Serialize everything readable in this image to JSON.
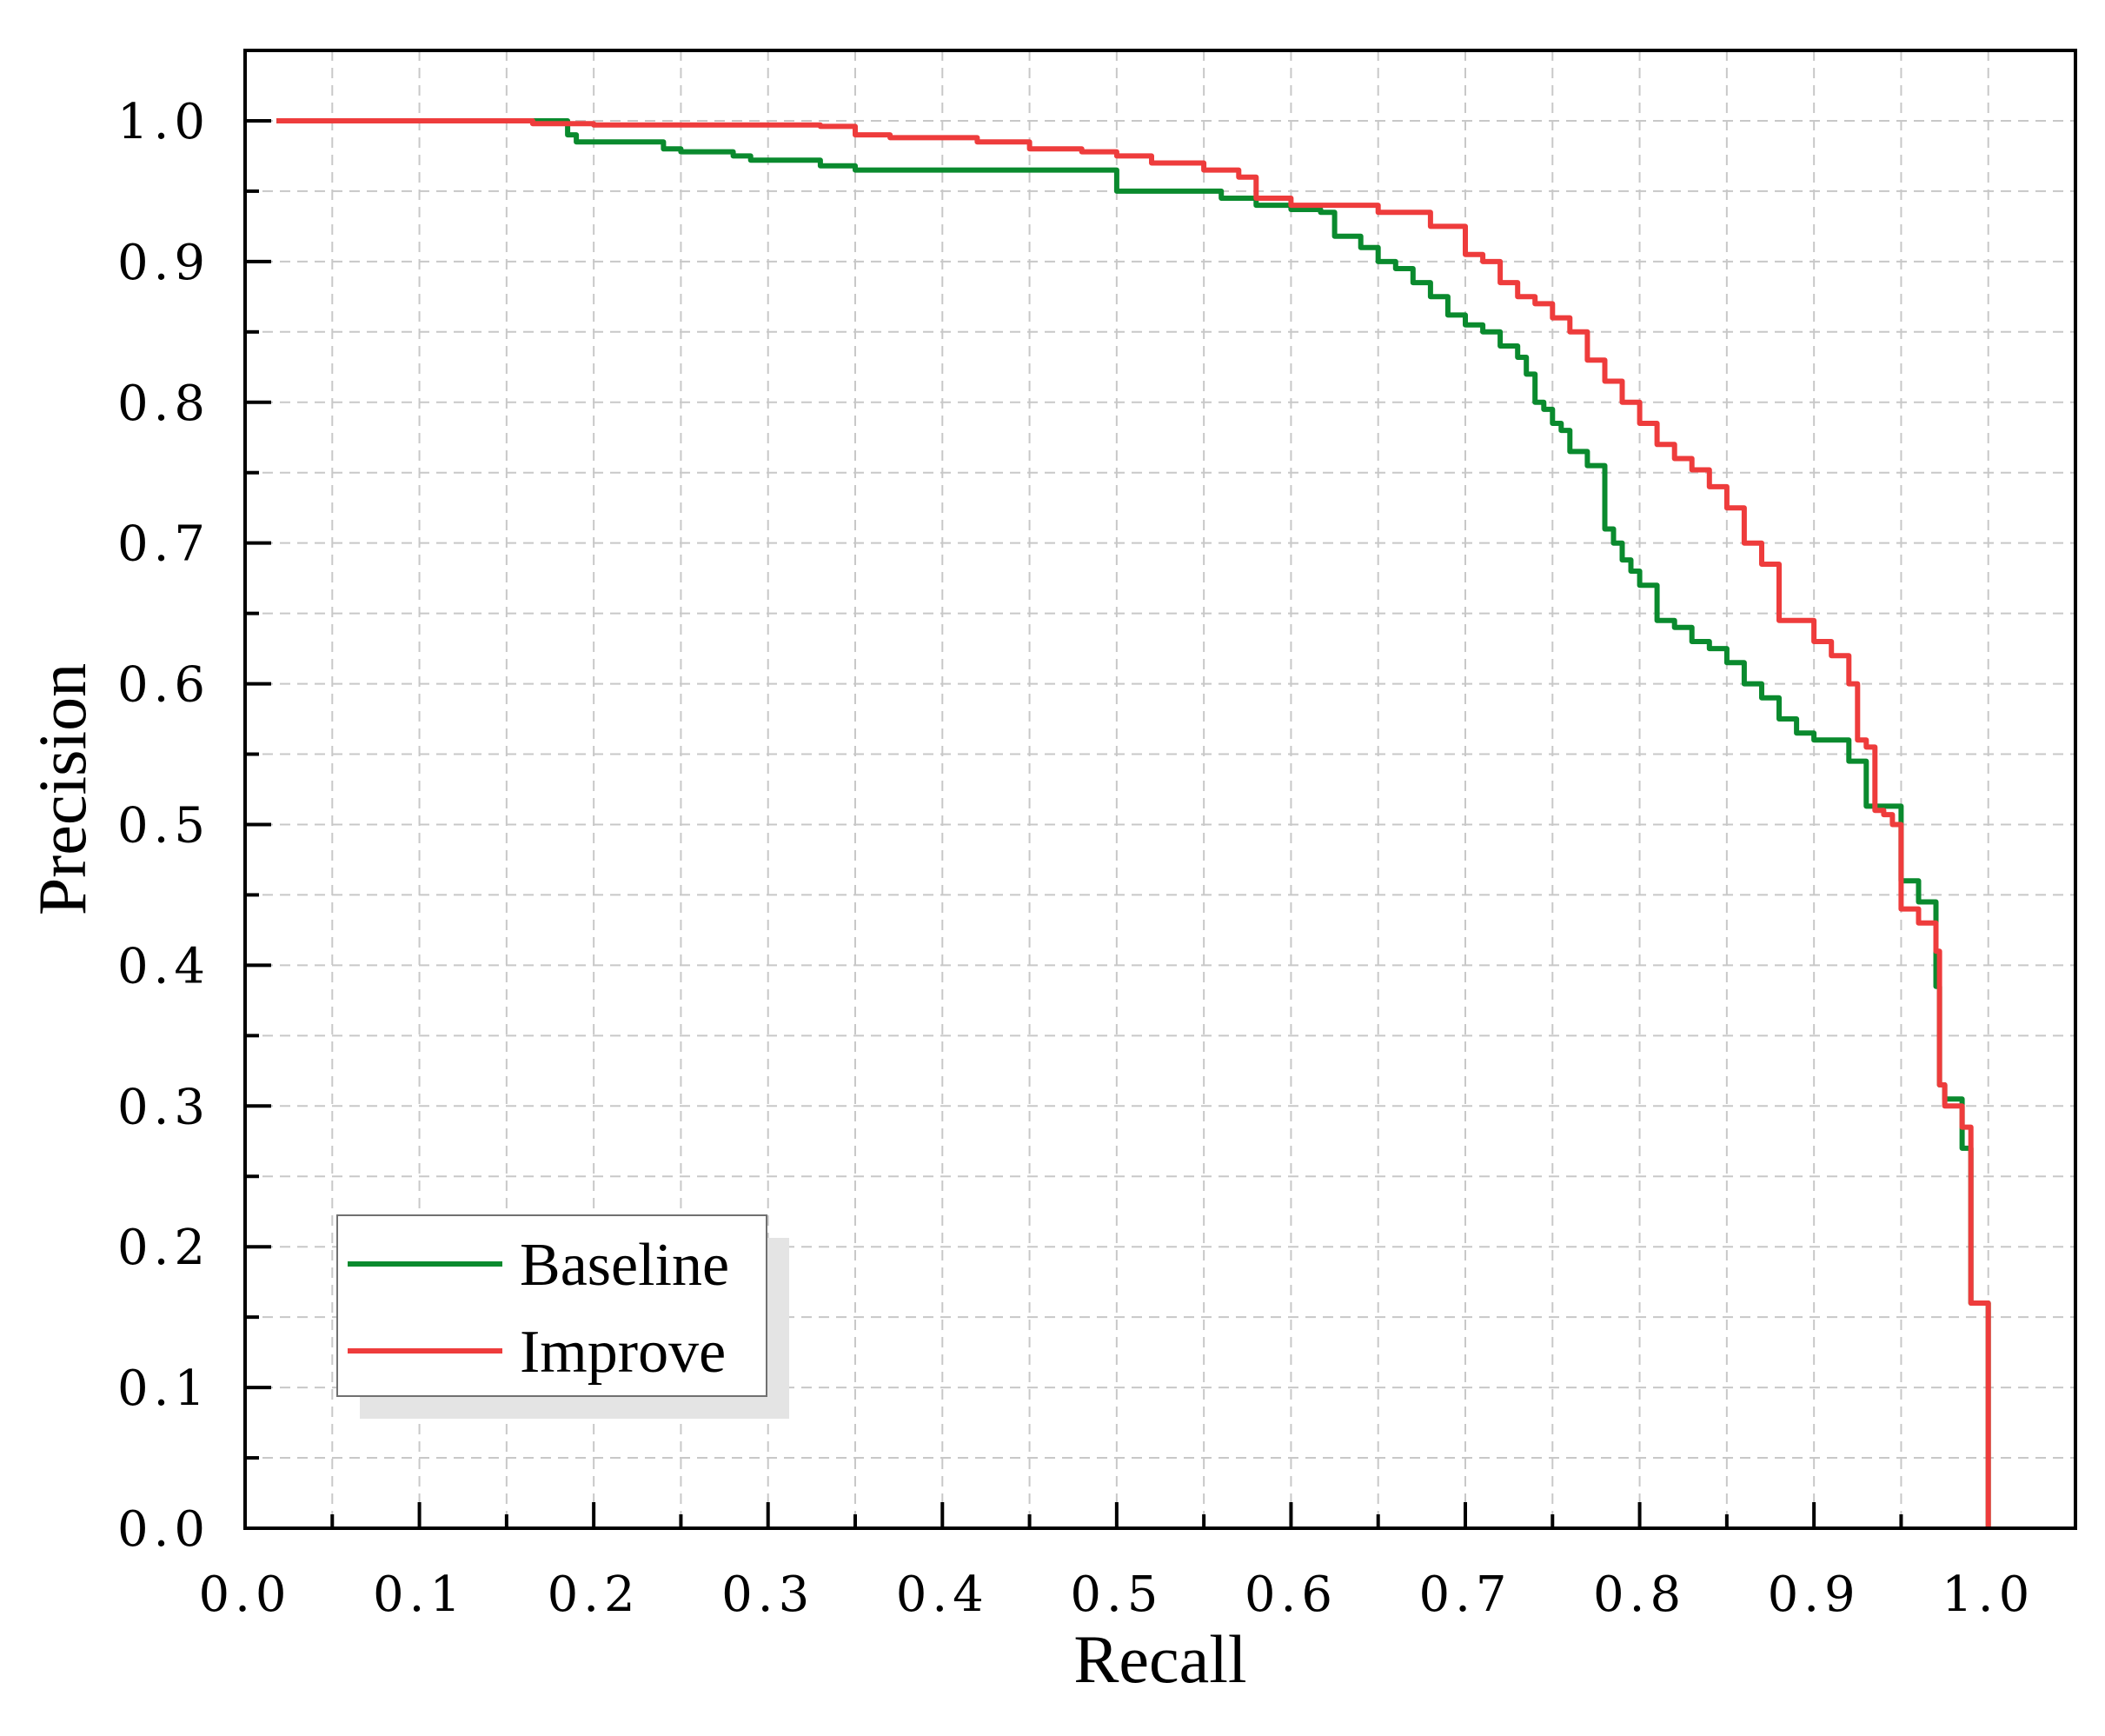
{
  "chart_data": {
    "type": "line",
    "title": "",
    "xlabel": "Recall",
    "ylabel": "Precision",
    "xlim": [
      0,
      1.05
    ],
    "ylim": [
      0,
      1.05
    ],
    "grid": true,
    "legend_position": "bottom-left",
    "x_ticks": [
      0.0,
      0.1,
      0.2,
      0.3,
      0.4,
      0.5,
      0.6,
      0.7,
      0.8,
      0.9,
      1.0
    ],
    "y_ticks": [
      0.0,
      0.1,
      0.2,
      0.3,
      0.4,
      0.5,
      0.6,
      0.7,
      0.8,
      0.9,
      1.0
    ],
    "x_tick_labels": [
      "0.0",
      "0.1",
      "0.2",
      "0.3",
      "0.4",
      "0.5",
      "0.6",
      "0.7",
      "0.8",
      "0.9",
      "1.0"
    ],
    "y_tick_labels": [
      "0.0",
      "0.1",
      "0.2",
      "0.3",
      "0.4",
      "0.5",
      "0.6",
      "0.7",
      "0.8",
      "0.9",
      "1.0"
    ],
    "series": [
      {
        "name": "Baseline",
        "color": "#0a8a2e",
        "x": [
          0.018,
          0.15,
          0.175,
          0.185,
          0.19,
          0.24,
          0.25,
          0.28,
          0.29,
          0.33,
          0.35,
          0.46,
          0.5,
          0.5,
          0.56,
          0.58,
          0.6,
          0.617,
          0.625,
          0.64,
          0.65,
          0.66,
          0.67,
          0.68,
          0.69,
          0.7,
          0.71,
          0.72,
          0.73,
          0.735,
          0.74,
          0.745,
          0.75,
          0.755,
          0.76,
          0.77,
          0.78,
          0.785,
          0.79,
          0.795,
          0.8,
          0.81,
          0.82,
          0.83,
          0.84,
          0.85,
          0.86,
          0.87,
          0.88,
          0.89,
          0.9,
          0.92,
          0.93,
          0.95,
          0.96,
          0.97,
          0.972,
          0.975,
          0.985,
          0.99,
          1.0
        ],
        "values": [
          1.0,
          1.0,
          1.0,
          0.99,
          0.985,
          0.98,
          0.978,
          0.975,
          0.972,
          0.968,
          0.965,
          0.965,
          0.96,
          0.95,
          0.945,
          0.94,
          0.937,
          0.935,
          0.918,
          0.91,
          0.9,
          0.895,
          0.885,
          0.875,
          0.862,
          0.855,
          0.85,
          0.84,
          0.832,
          0.82,
          0.8,
          0.795,
          0.785,
          0.78,
          0.765,
          0.755,
          0.71,
          0.7,
          0.688,
          0.68,
          0.67,
          0.645,
          0.64,
          0.63,
          0.625,
          0.615,
          0.6,
          0.59,
          0.575,
          0.565,
          0.56,
          0.545,
          0.513,
          0.46,
          0.445,
          0.385,
          0.315,
          0.305,
          0.27,
          0.16,
          0.0
        ]
      },
      {
        "name": "Improve",
        "color": "#ee3c3c",
        "x": [
          0.018,
          0.15,
          0.165,
          0.2,
          0.33,
          0.35,
          0.37,
          0.42,
          0.45,
          0.48,
          0.5,
          0.52,
          0.55,
          0.57,
          0.58,
          0.6,
          0.65,
          0.68,
          0.7,
          0.71,
          0.72,
          0.73,
          0.74,
          0.75,
          0.76,
          0.77,
          0.78,
          0.79,
          0.8,
          0.81,
          0.82,
          0.83,
          0.84,
          0.85,
          0.86,
          0.87,
          0.875,
          0.88,
          0.9,
          0.91,
          0.92,
          0.925,
          0.93,
          0.935,
          0.94,
          0.945,
          0.95,
          0.96,
          0.97,
          0.972,
          0.975,
          0.985,
          0.99,
          1.0
        ],
        "values": [
          1.0,
          1.0,
          0.998,
          0.997,
          0.996,
          0.99,
          0.988,
          0.985,
          0.98,
          0.978,
          0.975,
          0.97,
          0.965,
          0.96,
          0.945,
          0.94,
          0.935,
          0.925,
          0.905,
          0.9,
          0.885,
          0.875,
          0.87,
          0.86,
          0.85,
          0.83,
          0.815,
          0.8,
          0.785,
          0.77,
          0.76,
          0.752,
          0.74,
          0.725,
          0.7,
          0.685,
          0.685,
          0.645,
          0.63,
          0.62,
          0.6,
          0.56,
          0.555,
          0.51,
          0.507,
          0.5,
          0.44,
          0.43,
          0.41,
          0.315,
          0.3,
          0.285,
          0.16,
          0.0
        ]
      }
    ]
  }
}
